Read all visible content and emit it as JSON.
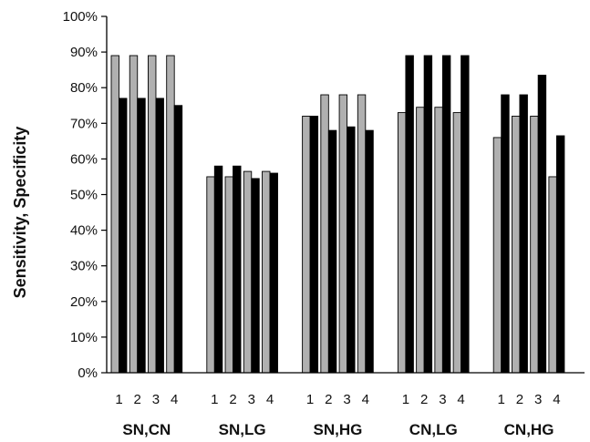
{
  "chart_data": {
    "type": "bar",
    "title": "",
    "ylabel": "Sensitivity, Specificity",
    "xlabel": "",
    "ylim": [
      0,
      100
    ],
    "y_ticks": [
      "0%",
      "10%",
      "20%",
      "30%",
      "40%",
      "50%",
      "60%",
      "70%",
      "80%",
      "90%",
      "100%"
    ],
    "grid": false,
    "legend": "none",
    "groups": [
      {
        "label": "SN,CN",
        "categories": [
          "1",
          "2",
          "3",
          "4"
        ]
      },
      {
        "label": "SN,LG",
        "categories": [
          "1",
          "2",
          "3",
          "4"
        ]
      },
      {
        "label": "SN,HG",
        "categories": [
          "1",
          "2",
          "3",
          "4"
        ]
      },
      {
        "label": "CN,LG",
        "categories": [
          "1",
          "2",
          "3",
          "4"
        ]
      },
      {
        "label": "CN,HG",
        "categories": [
          "1",
          "2",
          "3",
          "4"
        ]
      }
    ],
    "series": [
      {
        "color": "#b0b0b0",
        "values": [
          [
            89,
            89,
            89,
            89
          ],
          [
            55,
            55,
            56.5,
            56.5
          ],
          [
            72,
            78,
            78,
            78
          ],
          [
            73,
            74.5,
            74.5,
            73
          ],
          [
            66,
            72,
            72,
            55
          ]
        ]
      },
      {
        "color": "#000000",
        "values": [
          [
            77,
            77,
            77,
            75
          ],
          [
            58,
            58,
            54.5,
            56
          ],
          [
            72,
            68,
            69,
            68
          ],
          [
            89,
            89,
            89,
            89
          ],
          [
            78,
            78,
            83.5,
            66.5
          ]
        ]
      }
    ]
  }
}
